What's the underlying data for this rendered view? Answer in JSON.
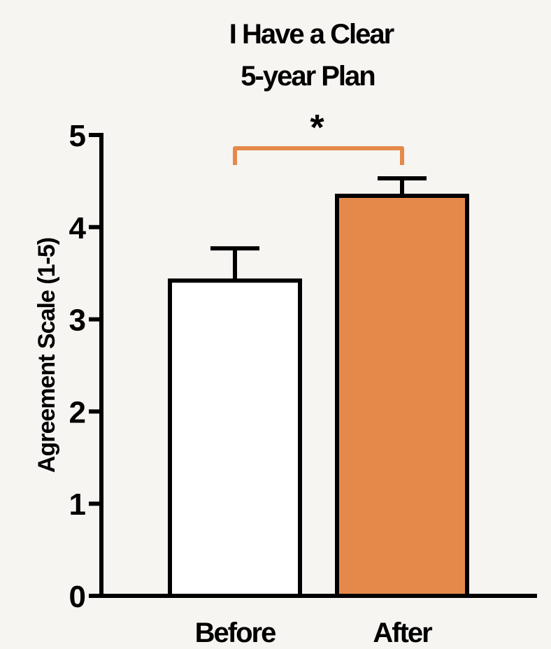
{
  "chart_data": {
    "type": "bar",
    "title": [
      "I Have a Clear",
      "5-year Plan"
    ],
    "ylabel": "Agreement Scale (1-5)",
    "xlabel": "",
    "categories": [
      "Before",
      "After"
    ],
    "values": [
      3.42,
      4.34
    ],
    "error": [
      0.35,
      0.19
    ],
    "ylim": [
      0,
      5
    ],
    "yticks": [
      "0",
      "1",
      "2",
      "3",
      "4",
      "5"
    ],
    "bar_colors": [
      "#ffffff",
      "#e5894a"
    ],
    "significance": {
      "between": [
        "Before",
        "After"
      ],
      "label": "*",
      "color": "#e5894a"
    },
    "grid": false,
    "legend": "none"
  }
}
